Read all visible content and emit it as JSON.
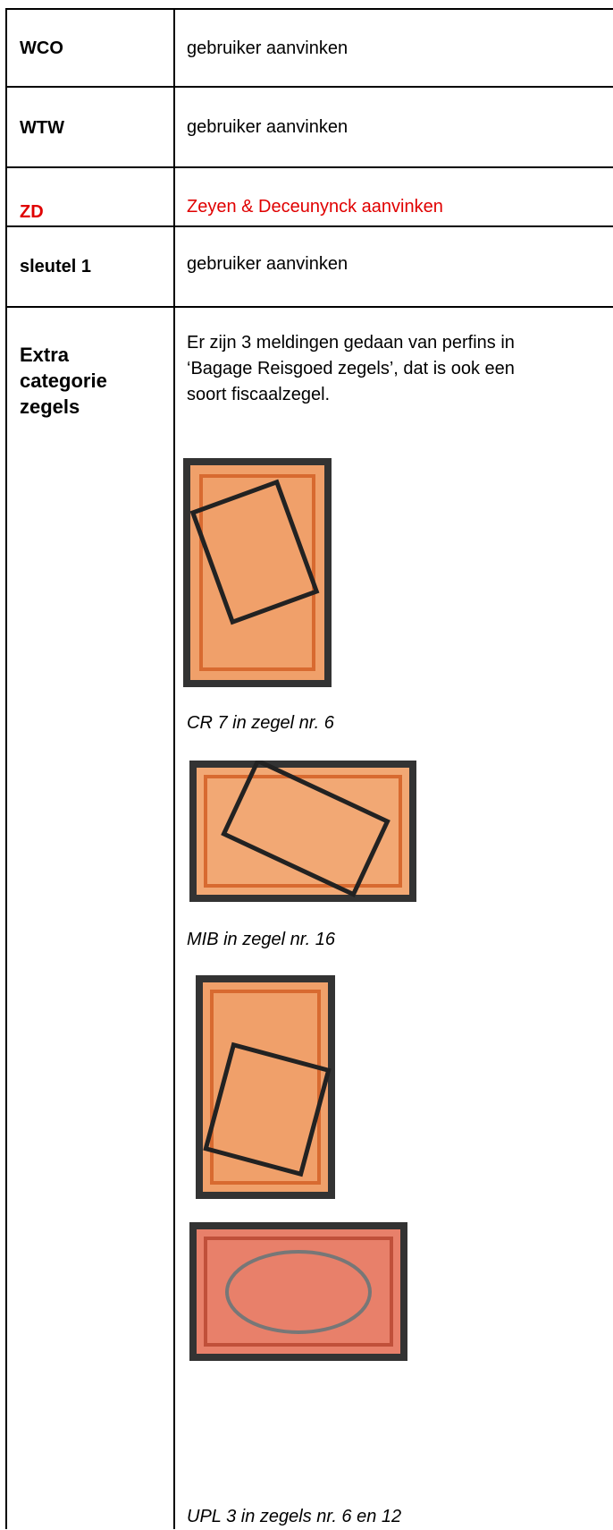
{
  "table": {
    "rows": [
      {
        "label": "WCO",
        "text": "gebruiker aanvinken"
      },
      {
        "label": "WTW",
        "text": "gebruiker aanvinken"
      },
      {
        "label": "ZD",
        "text": "Zeyen & Deceunynck aanvinken"
      },
      {
        "label": "sleutel  1",
        "text": "gebruiker aanvinken"
      },
      {
        "label": "Extra categorie zegels",
        "text": "Er zijn 3 meldingen gedaan van perfins in ‘Bagage Reisgoed zegels’, dat is ook een soort fiscaalzegel.",
        "captions": [
          "CR 7 in zegel nr. 6",
          "MIB in  zegel nr. 16",
          "UPL 3 in zegels nr. 6 en 12"
        ]
      }
    ]
  }
}
